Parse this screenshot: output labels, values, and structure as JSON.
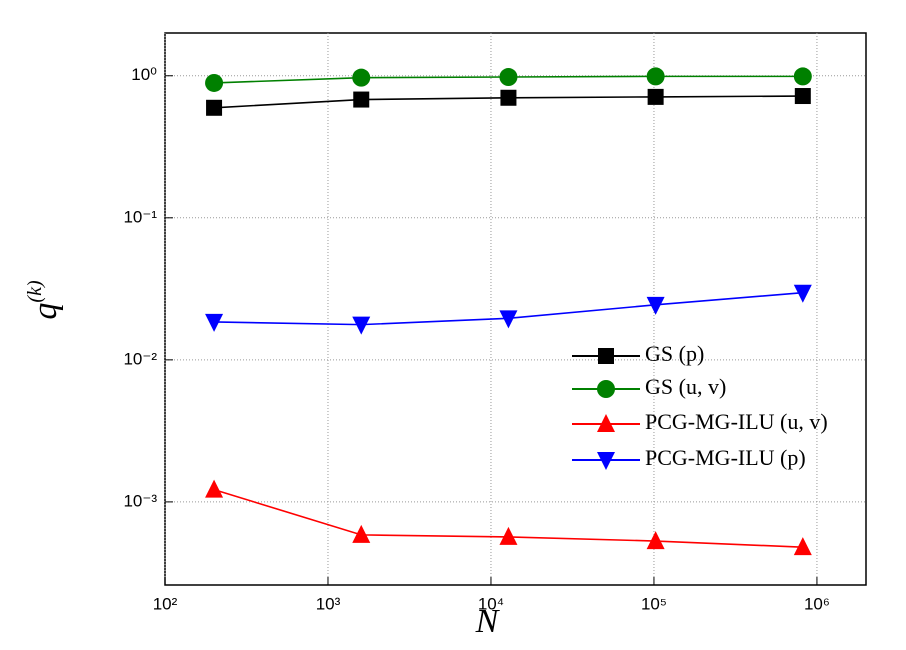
{
  "chart_data": {
    "type": "line",
    "xlabel": "N",
    "ylabel": "q",
    "ylabel_sup": "(k)",
    "x": [
      200,
      1600,
      12800,
      102400,
      819200
    ],
    "series": [
      {
        "name": "GS (p)",
        "color": "#000000",
        "marker": "square",
        "values": [
          0.595,
          0.68,
          0.7,
          0.71,
          0.72
        ]
      },
      {
        "name": "GS (u, v)",
        "color": "#008000",
        "marker": "circle",
        "values": [
          0.89,
          0.97,
          0.98,
          0.99,
          0.99
        ]
      },
      {
        "name": "PCG-MG-ILU (u, v)",
        "color": "#ff0000",
        "marker": "triangle-up",
        "values": [
          0.00122,
          0.000586,
          0.000567,
          0.00053,
          0.00048
        ]
      },
      {
        "name": "PCG-MG-ILU (p)",
        "color": "#0000ff",
        "marker": "triangle-down",
        "values": [
          0.0185,
          0.0177,
          0.0196,
          0.0244,
          0.0297
        ]
      }
    ],
    "xscale": "log",
    "yscale": "log",
    "xlim": [
      100,
      2000000
    ],
    "ylim": [
      0.00026,
      2
    ],
    "xticks": [
      {
        "value": 100,
        "label": "10²"
      },
      {
        "value": 1000,
        "label": "10³"
      },
      {
        "value": 10000,
        "label": "10⁴"
      },
      {
        "value": 100000,
        "label": "10⁵"
      },
      {
        "value": 1000000,
        "label": "10⁶"
      }
    ],
    "yticks": [
      {
        "value": 0.001,
        "label": "10⁻³"
      },
      {
        "value": 0.01,
        "label": "10⁻²"
      },
      {
        "value": 0.1,
        "label": "10⁻¹"
      },
      {
        "value": 1,
        "label": "10⁰"
      }
    ],
    "grid": true,
    "legend": "center-right"
  }
}
